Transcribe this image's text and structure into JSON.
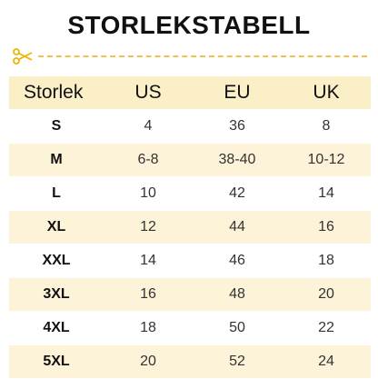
{
  "title": "STORLEKSTABELL",
  "table": {
    "headers": [
      "Storlek",
      "US",
      "EU",
      "UK"
    ],
    "rows": [
      {
        "size": "S",
        "us": "4",
        "eu": "36",
        "uk": "8"
      },
      {
        "size": "M",
        "us": "6-8",
        "eu": "38-40",
        "uk": "10-12"
      },
      {
        "size": "L",
        "us": "10",
        "eu": "42",
        "uk": "14"
      },
      {
        "size": "XL",
        "us": "12",
        "eu": "44",
        "uk": "16"
      },
      {
        "size": "XXL",
        "us": "14",
        "eu": "46",
        "uk": "18"
      },
      {
        "size": "3XL",
        "us": "16",
        "eu": "48",
        "uk": "20"
      },
      {
        "size": "4XL",
        "us": "18",
        "eu": "50",
        "uk": "22"
      },
      {
        "size": "5XL",
        "us": "20",
        "eu": "52",
        "uk": "24"
      }
    ]
  },
  "colors": {
    "header_bg": "#fbefc8",
    "stripe_bg": "#fdf3d8",
    "accent": "#f0c24c"
  },
  "icons": {
    "cut": "scissors-icon"
  }
}
